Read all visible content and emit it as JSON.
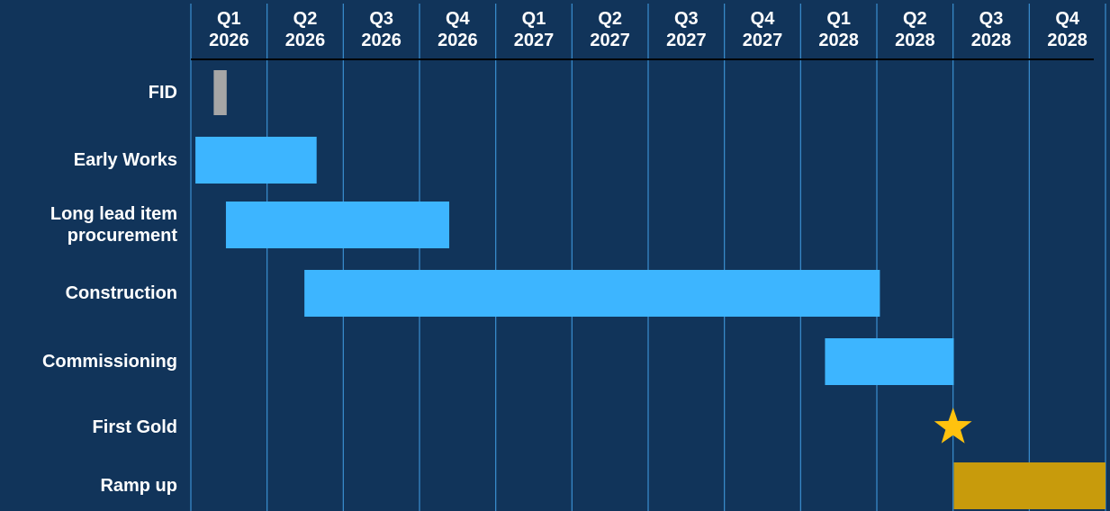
{
  "chart_data": {
    "type": "gantt",
    "categories": [
      "Q1 2026",
      "Q2 2026",
      "Q3 2026",
      "Q4 2026",
      "Q1 2027",
      "Q2 2027",
      "Q3 2027",
      "Q4 2027",
      "Q1 2028",
      "Q2 2028",
      "Q3 2028",
      "Q4 2028"
    ],
    "xlim": [
      0,
      12
    ],
    "grid": true,
    "tasks": [
      {
        "name": "FID",
        "start": 0.3,
        "end": 0.47,
        "color": "#a6a6a6"
      },
      {
        "name": "Early Works",
        "start": 0.06,
        "end": 1.65,
        "color": "#3db5ff"
      },
      {
        "name": "Long lead item procurement",
        "start": 0.46,
        "end": 3.39,
        "color": "#3db5ff"
      },
      {
        "name": "Construction",
        "start": 1.49,
        "end": 9.04,
        "color": "#3db5ff"
      },
      {
        "name": "Commissioning",
        "start": 8.32,
        "end": 10.01,
        "color": "#3db5ff"
      },
      {
        "name": "First Gold",
        "milestone": 10.0,
        "color": "#ffc20e"
      },
      {
        "name": "Ramp up",
        "start": 10.01,
        "end": 12,
        "color": "#c89b0c"
      }
    ]
  }
}
